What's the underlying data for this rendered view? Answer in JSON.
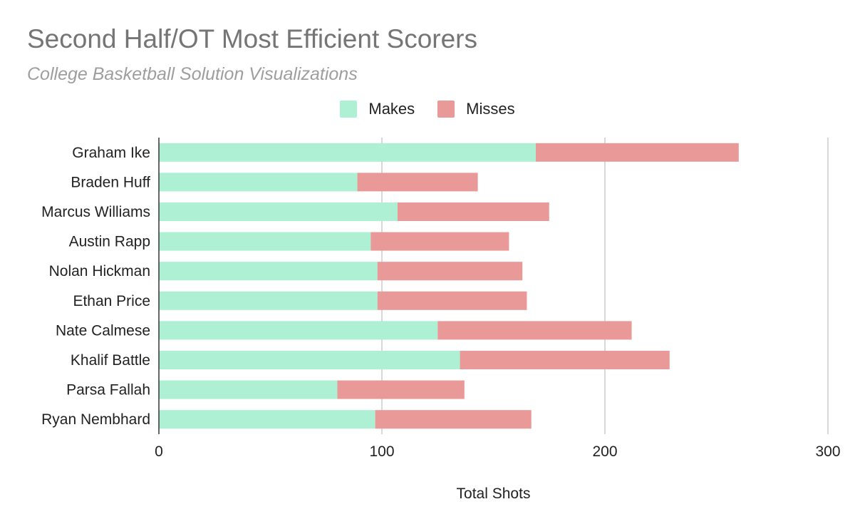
{
  "chart_data": {
    "type": "bar",
    "orientation": "horizontal",
    "stacked": true,
    "title": "Second Half/OT Most Efficient Scorers",
    "subtitle": "College Basketball Solution Visualizations",
    "xlabel": "Total Shots",
    "ylabel": "",
    "xlim": [
      0,
      300
    ],
    "xticks": [
      "0",
      "100",
      "200",
      "300"
    ],
    "grid": true,
    "legend_position": "top-center",
    "categories": [
      "Graham Ike",
      "Braden Huff",
      "Marcus Williams",
      "Austin Rapp",
      "Nolan Hickman",
      "Ethan Price",
      "Nate Calmese",
      "Khalif Battle",
      "Parsa Fallah",
      "Ryan Nembhard"
    ],
    "series": [
      {
        "name": "Makes",
        "color": "#adf0d4",
        "values": [
          169,
          89,
          107,
          95,
          98,
          98,
          125,
          135,
          80,
          97
        ]
      },
      {
        "name": "Misses",
        "color": "#ea9999",
        "values": [
          91,
          54,
          68,
          62,
          65,
          67,
          87,
          94,
          57,
          70
        ]
      }
    ]
  }
}
